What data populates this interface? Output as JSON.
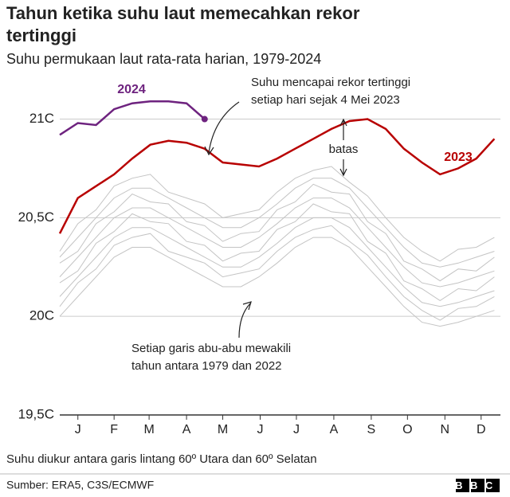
{
  "chart_data": {
    "type": "line",
    "title": [
      "Tahun ketika suhu laut memecahkan rekor",
      "tertinggi"
    ],
    "subtitle": "Suhu permukaan laut rata-rata harian, 1979-2024",
    "x": [
      1,
      16,
      31,
      46,
      61,
      76,
      91,
      106,
      121,
      136,
      151,
      166,
      181,
      196,
      211,
      226,
      241,
      256,
      271,
      286,
      301,
      316,
      331,
      346,
      361
    ],
    "xlim": [
      1,
      366
    ],
    "xticks": [
      {
        "value": 16,
        "label": "J"
      },
      {
        "value": 46,
        "label": "F"
      },
      {
        "value": 75,
        "label": "M"
      },
      {
        "value": 106,
        "label": "A"
      },
      {
        "value": 136,
        "label": "M"
      },
      {
        "value": 167,
        "label": "J"
      },
      {
        "value": 197,
        "label": "J"
      },
      {
        "value": 228,
        "label": "A"
      },
      {
        "value": 259,
        "label": "S"
      },
      {
        "value": 289,
        "label": "O"
      },
      {
        "value": 320,
        "label": "N"
      },
      {
        "value": 350,
        "label": "D"
      }
    ],
    "ylim": [
      19.5,
      21.2
    ],
    "yticks": [
      {
        "value": 19.5,
        "label": "19,5C"
      },
      {
        "value": 20,
        "label": "20C"
      },
      {
        "value": 20.5,
        "label": "20,5C"
      },
      {
        "value": 21,
        "label": "21C"
      }
    ],
    "grid": true,
    "series": [
      {
        "color": "#c4c4c4",
        "values": [
          20.0,
          20.1,
          20.2,
          20.3,
          20.35,
          20.35,
          20.3,
          20.25,
          20.2,
          20.15,
          20.15,
          20.2,
          20.27,
          20.35,
          20.4,
          20.4,
          20.35,
          20.25,
          20.15,
          20.05,
          19.97,
          19.95,
          19.97,
          20.0,
          20.03
        ]
      },
      {
        "color": "#c4c4c4",
        "values": [
          20.05,
          20.17,
          20.24,
          20.36,
          20.4,
          20.42,
          20.33,
          20.3,
          20.27,
          20.2,
          20.22,
          20.24,
          20.33,
          20.4,
          20.44,
          20.46,
          20.38,
          20.31,
          20.2,
          20.1,
          20.03,
          19.98,
          20.04,
          20.05,
          20.1
        ]
      },
      {
        "color": "#c4c4c4",
        "values": [
          20.1,
          20.2,
          20.3,
          20.4,
          20.45,
          20.45,
          20.4,
          20.35,
          20.3,
          20.25,
          20.25,
          20.3,
          20.37,
          20.45,
          20.5,
          20.5,
          20.45,
          20.35,
          20.25,
          20.15,
          20.07,
          20.05,
          20.07,
          20.1,
          20.13
        ]
      },
      {
        "color": "#c4c4c4",
        "values": [
          20.17,
          20.23,
          20.37,
          20.43,
          20.52,
          20.48,
          20.47,
          20.38,
          20.36,
          20.28,
          20.32,
          20.33,
          20.44,
          20.48,
          20.57,
          20.53,
          20.52,
          20.38,
          20.32,
          20.18,
          20.14,
          20.08,
          20.14,
          20.13,
          20.2
        ]
      },
      {
        "color": "#c4c4c4",
        "values": [
          20.2,
          20.3,
          20.4,
          20.5,
          20.55,
          20.55,
          20.5,
          20.45,
          20.4,
          20.35,
          20.35,
          20.4,
          20.47,
          20.55,
          20.6,
          20.6,
          20.55,
          20.45,
          20.35,
          20.25,
          20.17,
          20.15,
          20.17,
          20.2,
          20.23
        ]
      },
      {
        "color": "#c4c4c4",
        "values": [
          20.27,
          20.33,
          20.47,
          20.53,
          20.62,
          20.58,
          20.57,
          20.48,
          20.46,
          20.38,
          20.42,
          20.43,
          20.54,
          20.58,
          20.67,
          20.63,
          20.62,
          20.48,
          20.42,
          20.28,
          20.24,
          20.18,
          20.24,
          20.23,
          20.3
        ]
      },
      {
        "color": "#c4c4c4",
        "values": [
          20.3,
          20.4,
          20.5,
          20.6,
          20.65,
          20.65,
          20.6,
          20.55,
          20.5,
          20.45,
          20.45,
          20.5,
          20.57,
          20.65,
          20.7,
          20.7,
          20.65,
          20.55,
          20.45,
          20.35,
          20.27,
          20.25,
          20.27,
          20.3,
          20.33
        ]
      },
      {
        "color": "#c4c4c4",
        "values": [
          20.33,
          20.47,
          20.54,
          20.66,
          20.7,
          20.72,
          20.63,
          20.6,
          20.57,
          20.5,
          20.52,
          20.54,
          20.63,
          20.7,
          20.74,
          20.76,
          20.68,
          20.61,
          20.5,
          20.4,
          20.33,
          20.28,
          20.34,
          20.35,
          20.4
        ]
      },
      {
        "name": "2023",
        "color": "#b80000",
        "values": [
          20.42,
          20.6,
          20.66,
          20.72,
          20.8,
          20.87,
          20.89,
          20.88,
          20.85,
          20.78,
          20.77,
          20.76,
          20.8,
          20.85,
          20.9,
          20.95,
          20.99,
          21.0,
          20.95,
          20.85,
          20.78,
          20.72,
          20.75,
          20.8,
          20.9
        ]
      },
      {
        "name": "2024",
        "color": "#6e237f",
        "values": [
          20.92,
          20.98,
          20.97,
          21.05,
          21.08,
          21.09,
          21.09,
          21.08,
          21.0,
          null,
          null,
          null,
          null,
          null,
          null,
          null,
          null,
          null,
          null,
          null,
          null,
          null,
          null,
          null,
          null
        ]
      }
    ],
    "annotations": [
      [
        "Suhu mencapai rekor tertinggi",
        "setiap hari sejak 4 Mei 2023"
      ],
      [
        "batas"
      ],
      [
        "Setiap garis abu-abu mewakili",
        "tahun antara 1979 dan 2022"
      ]
    ],
    "note": "Suhu diukur antara garis lintang 60º Utara dan 60º Selatan",
    "source": "Sumber: ERA5, C3S/ECMWF",
    "logo": "BBC"
  }
}
